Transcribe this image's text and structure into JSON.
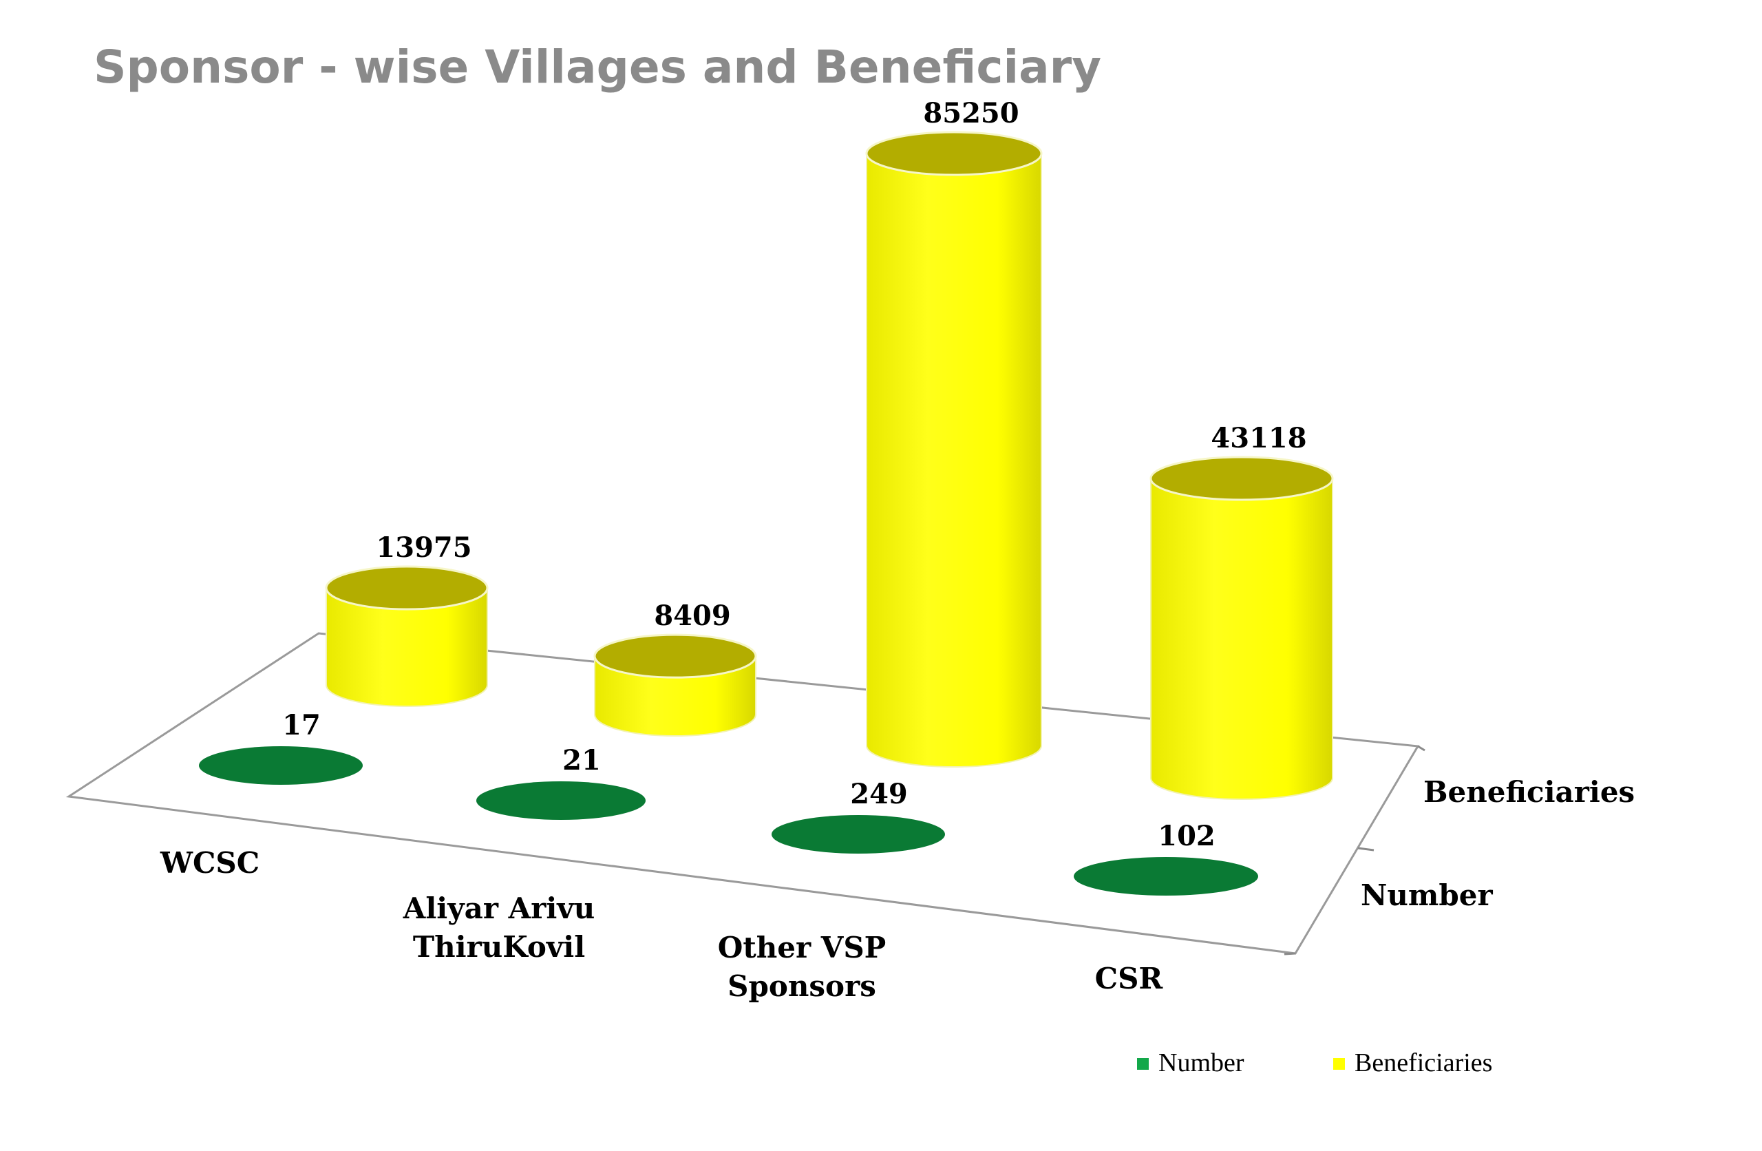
{
  "chart_data": {
    "type": "bar",
    "title": "Sponsor - wise Villages and Beneficiary",
    "categories": [
      [
        "WCSC"
      ],
      [
        "Aliyar Arivu",
        "ThiruKovil"
      ],
      [
        "Other VSP",
        "Sponsors"
      ],
      [
        "CSR"
      ]
    ],
    "series": [
      {
        "name": "Number",
        "values": [
          17,
          21,
          249,
          102
        ],
        "color": "#0a7a34"
      },
      {
        "name": "Beneficiaries",
        "values": [
          13975,
          8409,
          85250,
          43118
        ],
        "color": "#ffff00"
      }
    ],
    "depth_labels": [
      "Beneficiaries",
      "Number"
    ],
    "legend": {
      "placement": "bottom-right",
      "items": [
        "Number",
        "Beneficiaries"
      ]
    },
    "grid": false,
    "shape": "cylinder"
  }
}
